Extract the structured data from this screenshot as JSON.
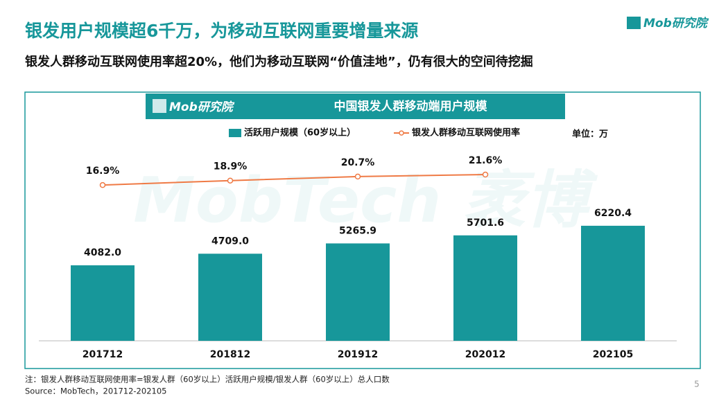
{
  "slide": {
    "title": "银发用户规模超6千万，为移动互联网重要增量来源",
    "subtitle": "银发人群移动互联网使用率超20%，他们为移动互联网“价值洼地”，仍有很大的空间待挖掘",
    "logo": "Mob研究院",
    "chart_logo": "Mob研究院",
    "watermark": "MobTech 袤博",
    "unit": "单位：万",
    "note": "注：银发人群移动互联网使用率=银发人群（60岁以上）活跃用户规模/银发人群（60岁以上）总人口数",
    "source": "Source：MobTech，201712-202105",
    "page": "5"
  },
  "chart_data": {
    "type": "bar",
    "title": "中国银发人群移动端用户规模",
    "categories": [
      "201712",
      "201812",
      "201912",
      "202012",
      "202105"
    ],
    "ylim": [
      0,
      10000
    ],
    "y2lim": [
      -53,
      30
    ],
    "series": [
      {
        "name": "活跃用户规模（60岁以上）",
        "type": "bar",
        "color": "#17979a",
        "values": [
          4082.0,
          4709.0,
          5265.9,
          5701.6,
          6220.4
        ],
        "value_labels": [
          "4082.0",
          "4709.0",
          "5265.9",
          "5701.6",
          "6220.4"
        ]
      },
      {
        "name": "银发人群移动互联网使用率",
        "type": "line",
        "axis": "y2",
        "color": "#ef7a45",
        "values": [
          16.9,
          18.9,
          20.7,
          21.6,
          null
        ],
        "value_labels": [
          "16.9%",
          "18.9%",
          "20.7%",
          "21.6%",
          null
        ]
      }
    ]
  }
}
